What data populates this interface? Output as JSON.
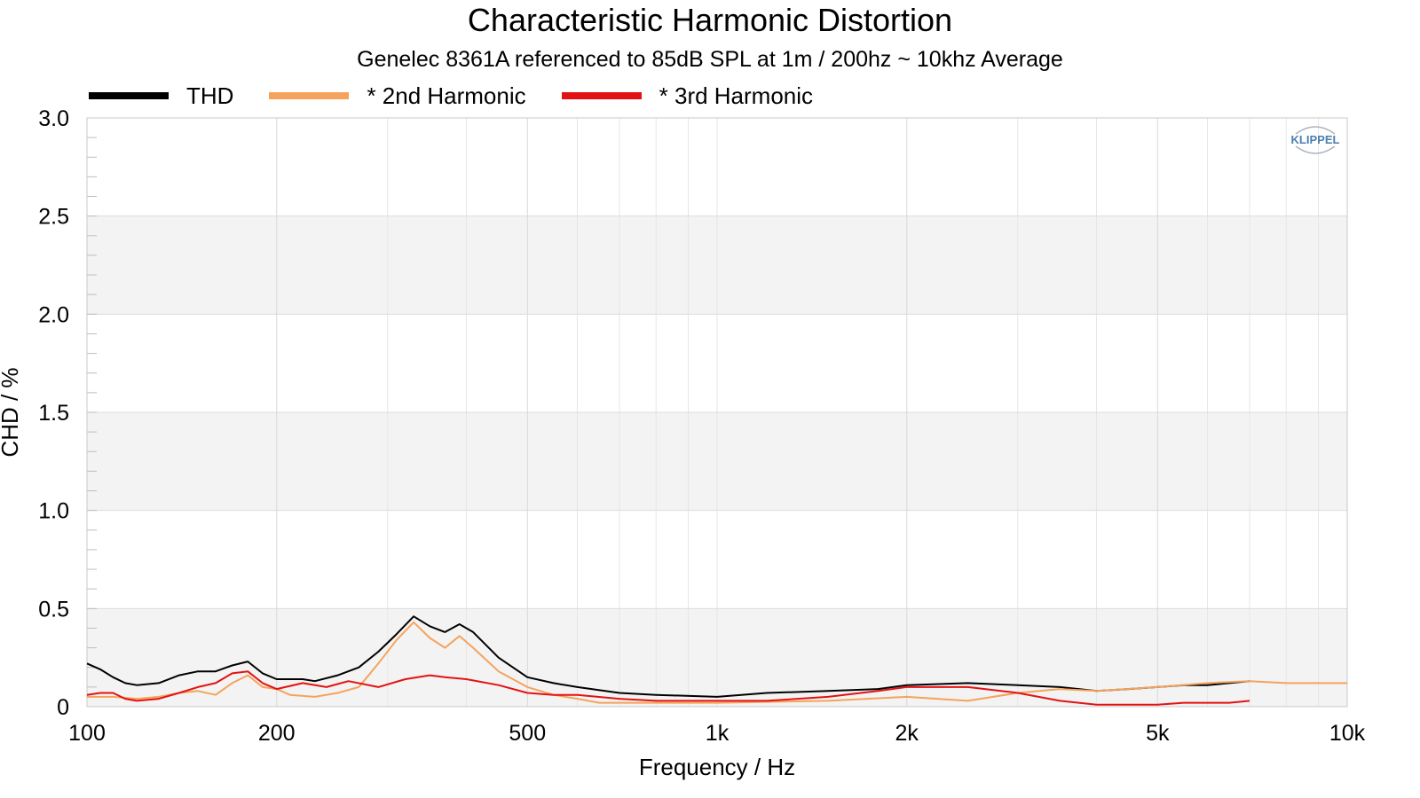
{
  "chart_data": {
    "type": "line",
    "title": "Characteristic Harmonic Distortion",
    "subtitle": "Genelec 8361A referenced to 85dB SPL at 1m / 200hz ~ 10khz Average",
    "xlabel": "Frequency / Hz",
    "ylabel": "CHD / %",
    "xscale": "log",
    "xlim": [
      100,
      10000
    ],
    "ylim": [
      0,
      3.0
    ],
    "x_ticks": [
      100,
      200,
      500,
      1000,
      2000,
      5000,
      10000
    ],
    "x_tick_labels": [
      "100",
      "200",
      "500",
      "1k",
      "2k",
      "5k",
      "10k"
    ],
    "y_ticks": [
      0,
      0.5,
      1.0,
      1.5,
      2.0,
      2.5,
      3.0
    ],
    "y_tick_labels": [
      "0",
      "0.5",
      "1.0",
      "1.5",
      "2.0",
      "2.5",
      "3.0"
    ],
    "grid": true,
    "legend_position": "top-left",
    "watermark": "KLIPPEL",
    "series": [
      {
        "name": "THD",
        "color": "#000000",
        "x": [
          100,
          105,
          110,
          115,
          120,
          130,
          140,
          150,
          160,
          170,
          180,
          190,
          200,
          210,
          220,
          230,
          250,
          270,
          290,
          310,
          330,
          350,
          370,
          390,
          410,
          450,
          500,
          550,
          600,
          700,
          800,
          1000,
          1200,
          1500,
          1800,
          2000,
          2500,
          3000,
          3500,
          4000,
          4500,
          5000,
          5500,
          6000,
          6500,
          7000
        ],
        "y": [
          0.22,
          0.19,
          0.15,
          0.12,
          0.11,
          0.12,
          0.16,
          0.18,
          0.18,
          0.21,
          0.23,
          0.17,
          0.14,
          0.14,
          0.14,
          0.13,
          0.16,
          0.2,
          0.28,
          0.37,
          0.46,
          0.41,
          0.38,
          0.42,
          0.38,
          0.25,
          0.15,
          0.12,
          0.1,
          0.07,
          0.06,
          0.05,
          0.07,
          0.08,
          0.09,
          0.11,
          0.12,
          0.11,
          0.1,
          0.08,
          0.09,
          0.1,
          0.11,
          0.11,
          0.12,
          0.13
        ]
      },
      {
        "name": "* 2nd Harmonic",
        "color": "#f5a35c",
        "x": [
          100,
          110,
          120,
          130,
          140,
          150,
          160,
          170,
          180,
          190,
          200,
          210,
          230,
          250,
          270,
          290,
          310,
          330,
          350,
          370,
          390,
          410,
          450,
          500,
          550,
          600,
          650,
          700,
          800,
          1000,
          1500,
          2000,
          2500,
          3000,
          3500,
          4000,
          5000,
          6000,
          7000,
          8000,
          9000,
          10000
        ],
        "y": [
          0.05,
          0.05,
          0.04,
          0.05,
          0.07,
          0.08,
          0.06,
          0.12,
          0.16,
          0.1,
          0.09,
          0.06,
          0.05,
          0.07,
          0.1,
          0.22,
          0.34,
          0.43,
          0.35,
          0.3,
          0.36,
          0.3,
          0.18,
          0.1,
          0.06,
          0.04,
          0.02,
          0.02,
          0.02,
          0.02,
          0.03,
          0.05,
          0.03,
          0.07,
          0.09,
          0.08,
          0.1,
          0.12,
          0.13,
          0.12,
          0.12,
          0.12
        ]
      },
      {
        "name": "* 3rd Harmonic",
        "color": "#e31212",
        "x": [
          100,
          105,
          110,
          115,
          120,
          130,
          140,
          150,
          160,
          170,
          180,
          190,
          200,
          220,
          240,
          260,
          290,
          320,
          350,
          370,
          400,
          450,
          500,
          550,
          600,
          700,
          800,
          1000,
          1200,
          1500,
          1800,
          2000,
          2500,
          3000,
          3500,
          4000,
          4500,
          5000,
          5500,
          6000,
          6500,
          7000
        ],
        "y": [
          0.06,
          0.07,
          0.07,
          0.04,
          0.03,
          0.04,
          0.07,
          0.1,
          0.12,
          0.17,
          0.18,
          0.12,
          0.09,
          0.12,
          0.1,
          0.13,
          0.1,
          0.14,
          0.16,
          0.15,
          0.14,
          0.11,
          0.07,
          0.06,
          0.06,
          0.04,
          0.03,
          0.03,
          0.03,
          0.05,
          0.08,
          0.1,
          0.1,
          0.07,
          0.03,
          0.01,
          0.01,
          0.01,
          0.02,
          0.02,
          0.02,
          0.03
        ]
      }
    ]
  }
}
